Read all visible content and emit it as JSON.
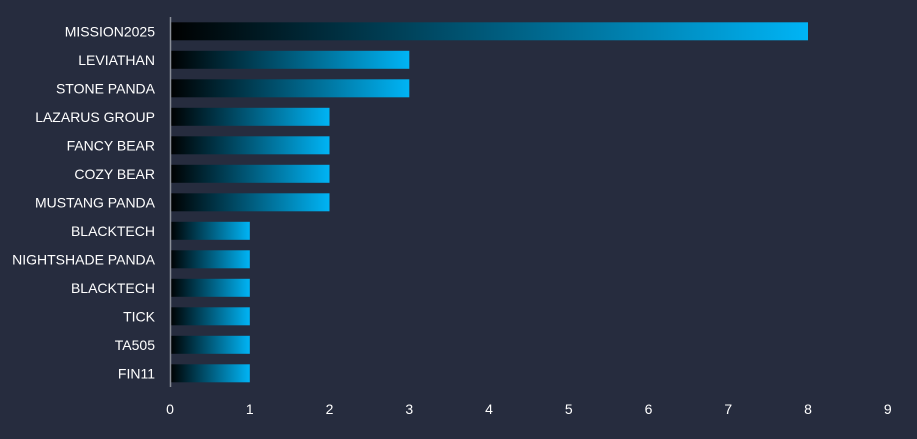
{
  "chart_data": {
    "type": "bar",
    "orientation": "horizontal",
    "categories": [
      "MISSION2025",
      "LEVIATHAN",
      "STONE PANDA",
      "LAZARUS GROUP",
      "FANCY BEAR",
      "COZY BEAR",
      "MUSTANG PANDA",
      "BLACKTECH",
      "NIGHTSHADE PANDA",
      "BLACKTECH",
      "TICK",
      "TA505",
      "FIN11"
    ],
    "values": [
      8,
      3,
      3,
      2,
      2,
      2,
      2,
      1,
      1,
      1,
      1,
      1,
      1
    ],
    "x_ticks": [
      "0",
      "1",
      "2",
      "3",
      "4",
      "5",
      "6",
      "7",
      "8",
      "9"
    ],
    "xlim": [
      0,
      9
    ],
    "grid": false,
    "legend": "none",
    "colors": {
      "background": "#262c3e",
      "bar_start": "#000000",
      "bar_end": "#00b4f5",
      "axis": "#8a8f99",
      "text": "#ffffff"
    }
  }
}
